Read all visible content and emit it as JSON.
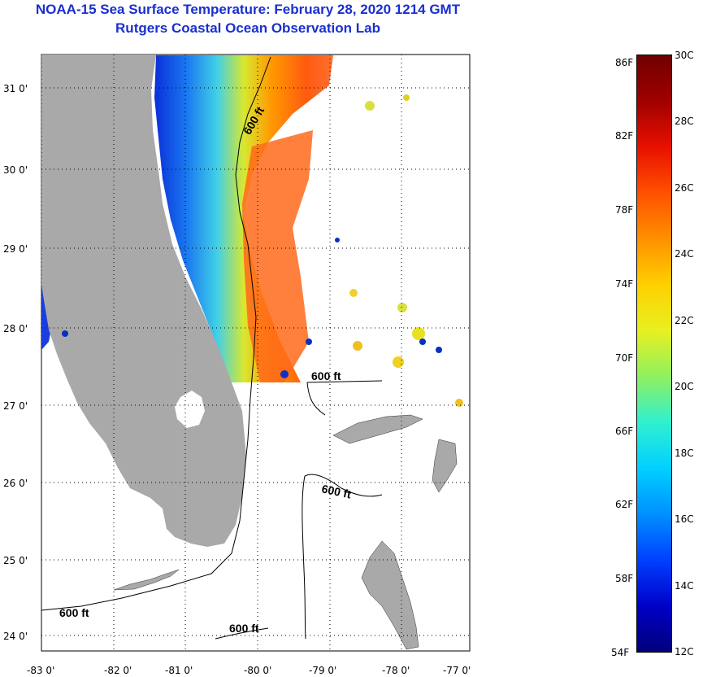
{
  "title": {
    "line1": "NOAA-15 Sea Surface Temperature:  February 28, 2020 1214 GMT",
    "line2": "Rutgers Coastal Ocean Observation Lab"
  },
  "map": {
    "lon_labels": [
      "-83 0'",
      "-82 0'",
      "-81 0'",
      "-80 0'",
      "-79 0'",
      "-78 0'",
      "-77 0'"
    ],
    "lat_labels": [
      "31 0'",
      "30 0'",
      "29 0'",
      "28 0'",
      "27 0'",
      "26 0'",
      "25 0'",
      "24 0'"
    ],
    "contour_label": "600 ft",
    "colors": {
      "land": "#a9a9a9",
      "ocean_cloud": "#ffffff",
      "island": "#ffffff"
    }
  },
  "colorbar": {
    "fahrenheit": [
      "86F",
      "82F",
      "78F",
      "74F",
      "70F",
      "66F",
      "62F",
      "58F",
      "54F"
    ],
    "celsius": [
      "30C",
      "28C",
      "26C",
      "24C",
      "22C",
      "20C",
      "18C",
      "16C",
      "14C",
      "12C"
    ],
    "gradient": [
      "#00007a",
      "#0000c8",
      "#0040ff",
      "#0090ff",
      "#00d0ff",
      "#30f0d0",
      "#90f060",
      "#e8f020",
      "#ffd000",
      "#ff9000",
      "#ff5000",
      "#e81000",
      "#a00000",
      "#700000"
    ]
  }
}
